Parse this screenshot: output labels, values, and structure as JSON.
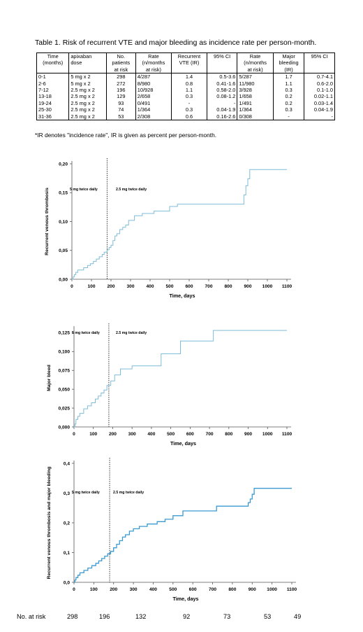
{
  "table": {
    "caption": "Table 1. Risk of recurrent VTE and major bleeding as incidence rate per person-month.",
    "header_lines": [
      [
        "Time",
        "apixaban",
        "No.",
        "Rate",
        "Recurrent",
        "95% CI",
        "Rate",
        "Major",
        "95% CI"
      ],
      [
        "(months)",
        "dose",
        "patients",
        "(n/months",
        "VTE (IR)",
        "",
        "(n/months",
        "bleeding",
        ""
      ],
      [
        "",
        "",
        "at risk",
        "at risk)",
        "",
        "",
        "at risk)",
        "(IR)",
        ""
      ]
    ],
    "rows": [
      [
        "0-1",
        "5 mg x 2",
        "298",
        "4/287",
        "1.4",
        "0.5-3.6",
        "5/287",
        "1.7",
        "0.7-4.1"
      ],
      [
        "2-6",
        "5 mg x 2",
        "272",
        "8/980",
        "0.8",
        "0.41-1.6",
        "11/980",
        "1.1",
        "0.6-2.0"
      ],
      [
        "7-12",
        "2.5 mg x 2",
        "196",
        "10/928",
        "1.1",
        "0.58-2.0",
        "3/928",
        "0.3",
        "0.1-1.0"
      ],
      [
        "13-18",
        "2.5 mg x 2",
        "129",
        "2/658",
        "0.3",
        "0.08-1.2",
        "1/658",
        "0.2",
        "0.02-1.1"
      ],
      [
        "19-24",
        "2.5 mg x 2",
        "93",
        "0/491",
        "-",
        "-",
        "1/491",
        "0.2",
        "0.03-1.4"
      ],
      [
        "25-30",
        "2.5 mg x 2",
        "74",
        "1/364",
        "0.3",
        "0.04-1.9",
        "1/364",
        "0.3",
        "0.04-1.9"
      ],
      [
        "31-36",
        "2.5 mg x 2",
        "53",
        "2/308",
        "0.6",
        "0.16-2.6",
        "0/308",
        "-",
        "-"
      ]
    ],
    "footnote": "*IR denotes \"incidence rate\", IR is given as percent per person-month."
  },
  "chart_data": [
    {
      "type": "line",
      "xlabel": "Time, days",
      "ylabel": "Recurrent venous thrombosis",
      "xlim": [
        0,
        1100
      ],
      "ylim": [
        0,
        0.2
      ],
      "xticks": [
        0,
        100,
        200,
        300,
        400,
        500,
        600,
        700,
        800,
        900,
        1000,
        1100
      ],
      "yticks": [
        "0,00",
        "0,05",
        "0,10",
        "0,15",
        "0,20"
      ],
      "ytick_values": [
        0,
        0.05,
        0.1,
        0.15,
        0.2
      ],
      "grid": false,
      "line_color": "#7fbcd8",
      "dose_change_day": 180,
      "annotations": [
        "5 mg twice daily",
        "2.5 mg twice daily"
      ],
      "series": [
        {
          "x": [
            0,
            6,
            12,
            20,
            30,
            45,
            60,
            80,
            95,
            110,
            125,
            140,
            155,
            165,
            180,
            190,
            200,
            210,
            220,
            230,
            245,
            260,
            275,
            290,
            320,
            360,
            420,
            500,
            540,
            880,
            890,
            900,
            910,
            1100
          ],
          "y": [
            0,
            0.004,
            0.008,
            0.012,
            0.016,
            0.016,
            0.02,
            0.024,
            0.027,
            0.031,
            0.035,
            0.039,
            0.043,
            0.047,
            0.051,
            0.055,
            0.059,
            0.067,
            0.075,
            0.079,
            0.086,
            0.09,
            0.094,
            0.102,
            0.11,
            0.114,
            0.118,
            0.126,
            0.13,
            0.146,
            0.162,
            0.174,
            0.19,
            0.19
          ]
        }
      ]
    },
    {
      "type": "line",
      "xlabel": "Time, days",
      "ylabel": "Major bleed",
      "xlim": [
        0,
        1100
      ],
      "ylim": [
        0,
        0.13
      ],
      "xticks": [
        0,
        100,
        200,
        300,
        400,
        500,
        600,
        700,
        800,
        900,
        1000,
        1100
      ],
      "yticks": [
        "0,000",
        "0,025",
        "0,050",
        "0,075",
        "0,100",
        "0,125"
      ],
      "ytick_values": [
        0,
        0.025,
        0.05,
        0.075,
        0.1,
        0.125
      ],
      "grid": false,
      "line_color": "#7fbcd8",
      "dose_change_day": 180,
      "annotations": [
        "5 mg twice daily",
        "2.5 mg twice daily"
      ],
      "series": [
        {
          "x": [
            0,
            5,
            10,
            20,
            30,
            50,
            70,
            90,
            110,
            125,
            140,
            155,
            170,
            190,
            210,
            240,
            300,
            450,
            550,
            720,
            1100
          ],
          "y": [
            0,
            0.004,
            0.01,
            0.014,
            0.018,
            0.024,
            0.028,
            0.032,
            0.037,
            0.041,
            0.045,
            0.049,
            0.055,
            0.061,
            0.069,
            0.077,
            0.081,
            0.097,
            0.114,
            0.128,
            0.128
          ]
        }
      ]
    },
    {
      "type": "line",
      "xlabel": "Time, days",
      "ylabel": "Recurrent venous thrombosis and major bleeding",
      "xlim": [
        0,
        1100
      ],
      "ylim": [
        0,
        0.4
      ],
      "xticks": [
        0,
        100,
        200,
        300,
        400,
        500,
        600,
        700,
        800,
        900,
        1000,
        1100
      ],
      "yticks": [
        "0,0",
        "0,1",
        "0,2",
        "0,3",
        "0,4"
      ],
      "ytick_values": [
        0,
        0.1,
        0.2,
        0.3,
        0.4
      ],
      "grid": false,
      "line_color": "#3b9bd0",
      "dose_change_day": 180,
      "annotations": [
        "5 mg twice daily",
        "2.5 mg twice daily"
      ],
      "series": [
        {
          "x": [
            0,
            5,
            10,
            20,
            30,
            50,
            70,
            90,
            110,
            125,
            140,
            155,
            170,
            185,
            200,
            215,
            230,
            245,
            260,
            280,
            300,
            330,
            370,
            420,
            460,
            500,
            550,
            720,
            880,
            890,
            900,
            910,
            1100
          ],
          "y": [
            0,
            0.008,
            0.016,
            0.024,
            0.032,
            0.04,
            0.048,
            0.056,
            0.064,
            0.072,
            0.08,
            0.088,
            0.096,
            0.104,
            0.116,
            0.128,
            0.14,
            0.152,
            0.16,
            0.172,
            0.18,
            0.188,
            0.196,
            0.204,
            0.212,
            0.224,
            0.24,
            0.256,
            0.268,
            0.28,
            0.296,
            0.316,
            0.316
          ]
        }
      ]
    }
  ],
  "at_risk": {
    "label": "No. at risk",
    "values": [
      "298",
      "196",
      "132",
      "92",
      "73",
      "53",
      "49"
    ]
  }
}
